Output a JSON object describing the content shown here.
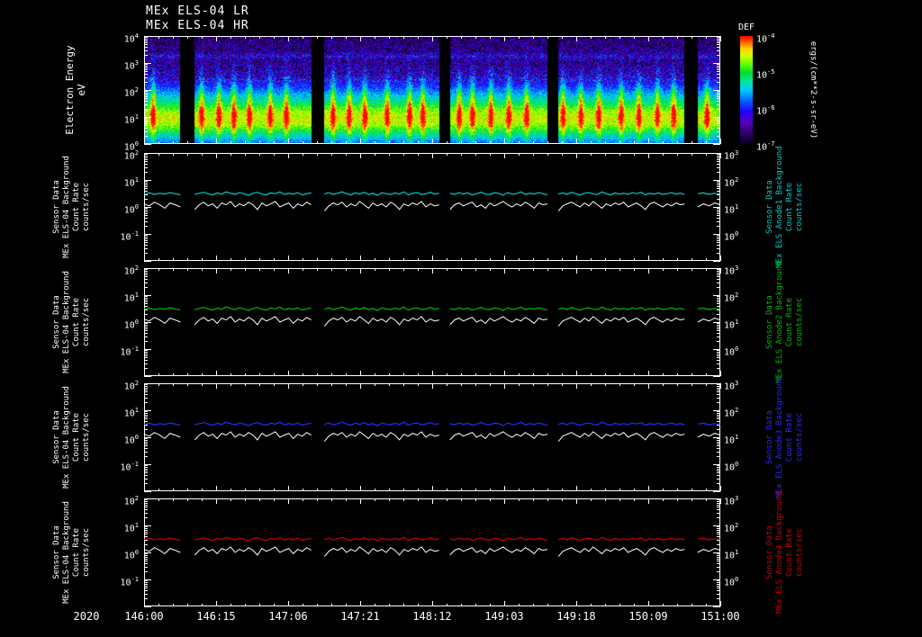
{
  "chart_data": {
    "spectrogram": {
      "type": "heatmap",
      "title_lines": [
        "MEx ELS-04 LR",
        "MEx ELS-04 HR"
      ],
      "ylabel_lines": [
        "Electron Energy",
        "eV"
      ],
      "ylim_log10": [
        0,
        4
      ],
      "ytick_labels": [
        "10^4",
        "10^3",
        "10^2",
        "10^1",
        "10^0"
      ],
      "colorbar": {
        "title": "DEF",
        "tick_labels": [
          "10^-4",
          "10^-5",
          "10^-6",
          "10^-7"
        ],
        "units": "ergs/(cm**2-s-sr-eV)",
        "colormap": [
          [
            0.0,
            "#05001e"
          ],
          [
            0.1,
            "#2e0066"
          ],
          [
            0.2,
            "#5a00b4"
          ],
          [
            0.3,
            "#2200ff"
          ],
          [
            0.4,
            "#0064ff"
          ],
          [
            0.5,
            "#00c8ff"
          ],
          [
            0.58,
            "#00e6a0"
          ],
          [
            0.66,
            "#00dc28"
          ],
          [
            0.74,
            "#64ff00"
          ],
          [
            0.82,
            "#d2ff00"
          ],
          [
            0.88,
            "#ffd200"
          ],
          [
            0.94,
            "#ff6400"
          ],
          [
            1.0,
            "#ff0000"
          ]
        ]
      },
      "spectrum_profile_logE_value": [
        [
          0.0,
          0.4
        ],
        [
          0.3,
          0.55
        ],
        [
          0.7,
          0.78
        ],
        [
          0.9,
          0.82
        ],
        [
          1.2,
          0.78
        ],
        [
          1.5,
          0.62
        ],
        [
          1.8,
          0.5
        ],
        [
          2.1,
          0.36
        ],
        [
          2.5,
          0.22
        ],
        [
          3.0,
          0.15
        ],
        [
          3.5,
          0.13
        ],
        [
          4.0,
          0.1
        ]
      ],
      "high_energy_band_logE": 3.25,
      "streak_times_frac": [
        0.016,
        0.1,
        0.13,
        0.156,
        0.183,
        0.219,
        0.247,
        0.328,
        0.356,
        0.383,
        0.422,
        0.461,
        0.484,
        0.547,
        0.57,
        0.602,
        0.633,
        0.664,
        0.727,
        0.758,
        0.789,
        0.828,
        0.859,
        0.891,
        0.919,
        0.977
      ]
    },
    "time_axis": {
      "year_label": "2020",
      "tick_labels": [
        "146:00",
        "146:15",
        "147:06",
        "147:21",
        "148:12",
        "149:03",
        "149:18",
        "150:09",
        "151:00"
      ],
      "data_gaps_frac": [
        [
          0.063,
          0.088
        ],
        [
          0.29,
          0.313
        ],
        [
          0.512,
          0.531
        ],
        [
          0.7,
          0.719
        ],
        [
          0.938,
          0.961
        ]
      ]
    },
    "line_panels": {
      "type": "line",
      "left_axis": {
        "lim_log10": [
          -2,
          2
        ],
        "tick_labels": [
          "10^2",
          "10^1",
          "10^0",
          "10^-1"
        ],
        "label_lines": [
          "Sensor Data",
          "MEx ELS-04 Background",
          "Count Rate",
          "counts/sec"
        ]
      },
      "right_axis": {
        "lim_log10": [
          -1,
          3
        ],
        "tick_labels": [
          "10^3",
          "10^2",
          "10^1",
          "10^0"
        ]
      },
      "panels": [
        {
          "name": "anode1",
          "color": "#00cccc",
          "right_label_lines": [
            "Sensor Data",
            "MEx ELS Anode1 Background",
            "Count Rate",
            "counts/sec"
          ]
        },
        {
          "name": "anode2",
          "color": "#00bb00",
          "right_label_lines": [
            "Sensor Data",
            "MEx ELS Anode2 Background",
            "Count Rate",
            "counts/sec"
          ]
        },
        {
          "name": "anode3",
          "color": "#2a2aff",
          "right_label_lines": [
            "Sensor Data",
            "MEx ELS Anode3 Background",
            "Count Rate",
            "counts/sec"
          ]
        },
        {
          "name": "anode4",
          "color": "#cc0000",
          "right_label_lines": [
            "Sensor Data",
            "MEx ELS Anode4 Background",
            "Count Rate",
            "counts/sec"
          ]
        }
      ],
      "series_names": {
        "colored": "count rate",
        "white": "background rate"
      },
      "white_color": "#ffffff",
      "segments": [
        {
          "x0": 0.0,
          "x1": 0.063,
          "rate": [
            3.1,
            3.3,
            2.9,
            3.2,
            3.0,
            3.4,
            3.1,
            2.8
          ],
          "background": [
            1.3,
            1.1,
            1.5,
            1.2,
            0.9,
            1.4,
            1.2,
            1.0
          ]
        },
        {
          "x0": 0.088,
          "x1": 0.29,
          "rate": [
            2.9,
            3.2,
            3.5,
            3.1,
            2.8,
            3.3,
            3.0,
            3.6,
            3.2,
            2.9,
            3.4,
            3.1,
            2.7,
            3.2,
            3.5,
            3.0,
            2.8,
            3.3,
            3.1,
            3.6,
            2.9,
            3.2,
            3.0,
            3.4,
            2.8,
            3.1,
            3.3
          ],
          "background": [
            0.8,
            1.2,
            1.5,
            1.1,
            1.3,
            0.9,
            1.4,
            1.2,
            1.6,
            1.0,
            1.3,
            1.1,
            1.5,
            1.2,
            0.8,
            1.4,
            1.1,
            1.3,
            1.6,
            1.0,
            1.2,
            1.4,
            0.9,
            1.3,
            1.1,
            1.5,
            1.2
          ]
        },
        {
          "x0": 0.313,
          "x1": 0.512,
          "rate": [
            3.0,
            3.4,
            2.9,
            3.2,
            3.6,
            3.1,
            2.8,
            3.3,
            3.0,
            3.5,
            2.9,
            3.2,
            2.7,
            3.4,
            3.1,
            2.9,
            3.3,
            3.0,
            3.6,
            2.8,
            3.2,
            3.4,
            2.9,
            3.1,
            3.5,
            3.0,
            3.2
          ],
          "background": [
            0.7,
            1.1,
            1.4,
            1.2,
            1.5,
            1.0,
            1.3,
            1.1,
            1.6,
            1.2,
            0.9,
            1.4,
            1.1,
            1.3,
            1.0,
            1.5,
            1.2,
            0.8,
            1.3,
            1.1,
            1.4,
            1.2,
            1.6,
            1.0,
            1.3,
            1.1,
            1.2
          ]
        },
        {
          "x0": 0.531,
          "x1": 0.7,
          "rate": [
            3.2,
            2.9,
            3.4,
            3.0,
            3.3,
            2.8,
            3.1,
            3.5,
            3.0,
            2.9,
            3.3,
            3.2,
            2.7,
            3.4,
            3.0,
            3.1,
            3.6,
            2.9,
            3.2,
            3.0,
            3.4,
            3.1,
            2.8
          ],
          "background": [
            0.8,
            1.2,
            1.4,
            1.1,
            1.3,
            1.5,
            1.0,
            1.2,
            0.9,
            1.4,
            1.1,
            1.3,
            1.6,
            1.2,
            1.0,
            1.3,
            1.1,
            1.5,
            1.2,
            0.9,
            1.4,
            1.2,
            1.3
          ]
        },
        {
          "x0": 0.719,
          "x1": 0.938,
          "rate": [
            3.0,
            3.3,
            2.9,
            3.5,
            3.1,
            2.8,
            3.2,
            3.4,
            3.0,
            2.9,
            3.6,
            3.1,
            2.8,
            3.3,
            3.0,
            3.2,
            2.9,
            3.4,
            3.1,
            3.5,
            2.8,
            3.2,
            3.0,
            3.3,
            2.9,
            3.1,
            3.4,
            3.0,
            3.2,
            2.9
          ],
          "background": [
            0.7,
            1.1,
            1.3,
            1.5,
            1.2,
            1.0,
            1.4,
            1.1,
            1.6,
            1.2,
            0.9,
            1.3,
            1.1,
            1.4,
            1.2,
            1.5,
            1.0,
            1.2,
            1.4,
            1.1,
            0.8,
            1.3,
            1.5,
            1.2,
            1.0,
            1.3,
            1.1,
            1.4,
            1.2,
            1.3
          ]
        },
        {
          "x0": 0.961,
          "x1": 1.0,
          "rate": [
            3.1,
            3.3,
            2.9,
            3.2,
            3.0
          ],
          "background": [
            1.0,
            1.3,
            1.1,
            1.4,
            1.2
          ]
        }
      ]
    }
  }
}
